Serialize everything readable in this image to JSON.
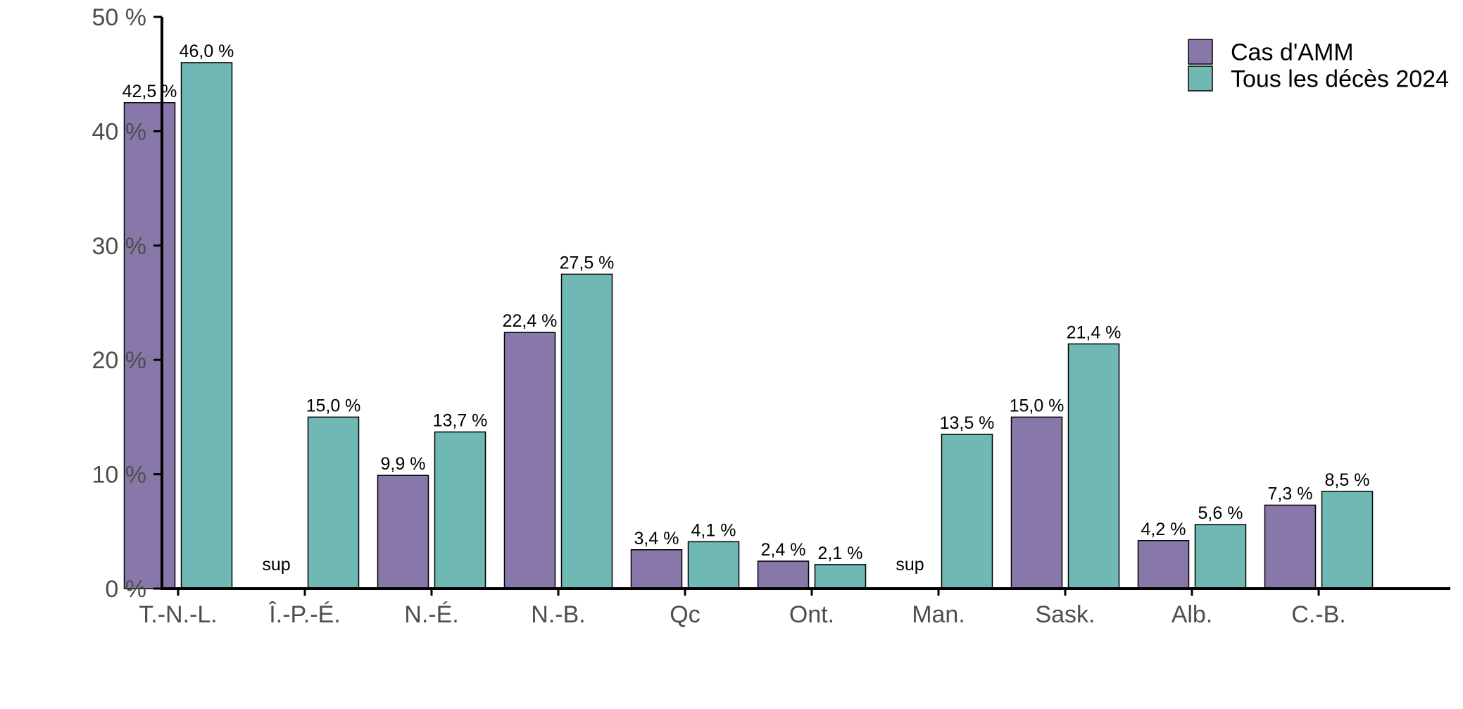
{
  "chart_data": {
    "type": "bar",
    "categories": [
      "T.-N.-L.",
      "Î.-P.-É.",
      "N.-É.",
      "N.-B.",
      "Qc",
      "Ont.",
      "Man.",
      "Sask.",
      "Alb.",
      "C.-B."
    ],
    "series": [
      {
        "name": "Cas d'AMM",
        "color": "#8878aa",
        "values": [
          42.5,
          null,
          9.9,
          22.4,
          3.4,
          2.4,
          null,
          15.0,
          4.2,
          7.3
        ],
        "labels": [
          "42,5 %",
          "sup",
          "9,9 %",
          "22,4 %",
          "3,4 %",
          "2,4 %",
          "sup",
          "15,0 %",
          "4,2 %",
          "7,3 %"
        ]
      },
      {
        "name": "Tous les décès 2024",
        "color": "#6fb8b4",
        "values": [
          46.0,
          15.0,
          13.7,
          27.5,
          4.1,
          2.1,
          13.5,
          21.4,
          5.6,
          8.5
        ],
        "labels": [
          "46,0 %",
          "15,0 %",
          "13,7 %",
          "27,5 %",
          "4,1 %",
          "2,1 %",
          "13,5 %",
          "21,4 %",
          "5,6 %",
          "8,5 %"
        ]
      }
    ],
    "ylim": [
      0,
      50
    ],
    "yticks": [
      0,
      10,
      20,
      30,
      40,
      50
    ],
    "ytick_labels": [
      "0 %",
      "10 %",
      "20 %",
      "30 %",
      "40 %",
      "50 %"
    ],
    "xlabel": "",
    "ylabel": "",
    "title": "",
    "grid": false,
    "legend_position": "top-right"
  }
}
